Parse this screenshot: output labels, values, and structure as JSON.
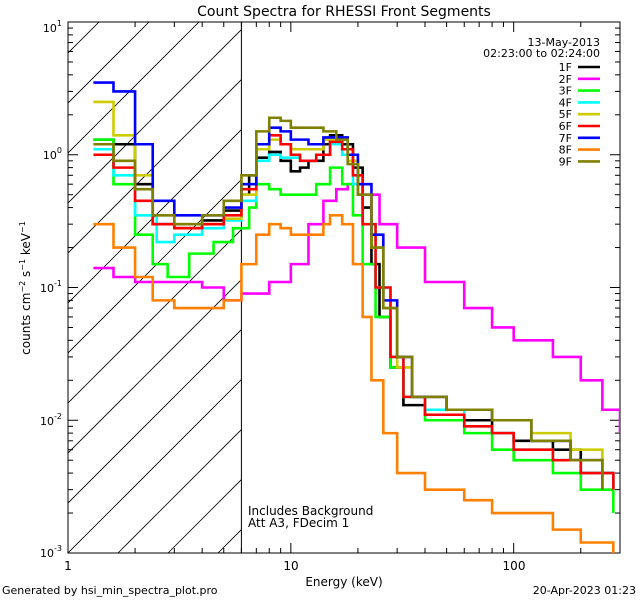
{
  "chart_data": {
    "type": "line",
    "title": "Count Spectra for RHESSI Front Segments",
    "date": "13-May-2013",
    "time_range": "02:23:00 to 02:24:00",
    "xlabel": "Energy (keV)",
    "ylabel_base": "counts cm",
    "xscale": "log",
    "yscale": "log",
    "xlim": [
      1,
      300
    ],
    "ylim": [
      0.001,
      10
    ],
    "x_tick_labels": [
      "1",
      "10",
      "100"
    ],
    "y_tick_labels": [
      "10",
      "10",
      "10",
      "10",
      "10"
    ],
    "y_tick_exponents": [
      "1",
      "0",
      "-1",
      "-2",
      "-3"
    ],
    "attenuator_energy_kev": 6,
    "note1": "Includes Background",
    "note2": "Att A3, FDecim 1",
    "footer_left": "Generated by hsi_min_spectra_plot.pro",
    "footer_right": "20-Apr-2023 01:23",
    "series": [
      {
        "name": "1F",
        "color": "#000000",
        "points": [
          [
            1.3,
            1.3
          ],
          [
            1.6,
            1.2
          ],
          [
            2.0,
            0.6
          ],
          [
            2.4,
            0.3
          ],
          [
            3.0,
            0.28
          ],
          [
            4.0,
            0.32
          ],
          [
            5.0,
            0.38
          ],
          [
            6.0,
            0.5
          ],
          [
            6.5,
            0.7
          ],
          [
            7.0,
            0.95
          ],
          [
            8.0,
            1.05
          ],
          [
            9.0,
            0.9
          ],
          [
            10.0,
            0.75
          ],
          [
            11.0,
            0.8
          ],
          [
            12.0,
            0.9
          ],
          [
            14.0,
            1.2
          ],
          [
            15.0,
            1.4
          ],
          [
            17.0,
            1.2
          ],
          [
            19.0,
            0.8
          ],
          [
            21.0,
            0.4
          ],
          [
            23.0,
            0.15
          ],
          [
            25.0,
            0.06
          ],
          [
            28.0,
            0.025
          ],
          [
            32.0,
            0.013
          ],
          [
            40.0,
            0.011
          ],
          [
            60.0,
            0.01
          ],
          [
            80.0,
            0.008
          ],
          [
            100.0,
            0.007
          ],
          [
            150.0,
            0.006
          ],
          [
            200.0,
            0.004
          ],
          [
            280.0,
            0.003
          ]
        ]
      },
      {
        "name": "2F",
        "color": "#ff00ff",
        "points": [
          [
            1.3,
            0.14
          ],
          [
            1.6,
            0.12
          ],
          [
            2.0,
            0.11
          ],
          [
            3.0,
            0.11
          ],
          [
            4.0,
            0.1
          ],
          [
            5.0,
            0.08
          ],
          [
            6.0,
            0.09
          ],
          [
            8.0,
            0.11
          ],
          [
            10.0,
            0.15
          ],
          [
            12.0,
            0.3
          ],
          [
            14.0,
            0.45
          ],
          [
            16.0,
            0.55
          ],
          [
            18.0,
            0.6
          ],
          [
            20.0,
            0.5
          ],
          [
            25.0,
            0.3
          ],
          [
            30.0,
            0.2
          ],
          [
            40.0,
            0.11
          ],
          [
            60.0,
            0.07
          ],
          [
            80.0,
            0.05
          ],
          [
            100.0,
            0.04
          ],
          [
            150.0,
            0.03
          ],
          [
            200.0,
            0.02
          ],
          [
            250.0,
            0.012
          ],
          [
            300.0,
            0.008
          ]
        ]
      },
      {
        "name": "3F",
        "color": "#00ff00",
        "points": [
          [
            1.3,
            1.3
          ],
          [
            1.6,
            0.6
          ],
          [
            2.0,
            0.25
          ],
          [
            2.4,
            0.15
          ],
          [
            2.8,
            0.12
          ],
          [
            3.5,
            0.18
          ],
          [
            4.5,
            0.22
          ],
          [
            5.5,
            0.28
          ],
          [
            6.5,
            0.4
          ],
          [
            7.0,
            0.6
          ],
          [
            8.0,
            0.55
          ],
          [
            9.0,
            0.5
          ],
          [
            11.0,
            0.5
          ],
          [
            13.0,
            0.6
          ],
          [
            15.0,
            0.8
          ],
          [
            17.0,
            0.6
          ],
          [
            19.0,
            0.35
          ],
          [
            21.0,
            0.15
          ],
          [
            24.0,
            0.06
          ],
          [
            28.0,
            0.025
          ],
          [
            32.0,
            0.015
          ],
          [
            40.0,
            0.01
          ],
          [
            60.0,
            0.008
          ],
          [
            80.0,
            0.006
          ],
          [
            100.0,
            0.005
          ],
          [
            150.0,
            0.004
          ],
          [
            200.0,
            0.003
          ],
          [
            280.0,
            0.002
          ]
        ]
      },
      {
        "name": "4F",
        "color": "#00ffff",
        "points": [
          [
            1.3,
            1.1
          ],
          [
            1.6,
            0.7
          ],
          [
            2.0,
            0.35
          ],
          [
            2.5,
            0.22
          ],
          [
            3.0,
            0.25
          ],
          [
            4.0,
            0.28
          ],
          [
            5.0,
            0.32
          ],
          [
            6.0,
            0.45
          ],
          [
            7.0,
            0.9
          ],
          [
            8.0,
            1.0
          ],
          [
            9.0,
            0.95
          ],
          [
            11.0,
            0.9
          ],
          [
            13.0,
            1.0
          ],
          [
            15.0,
            1.2
          ],
          [
            17.0,
            1.0
          ],
          [
            19.0,
            0.6
          ],
          [
            21.0,
            0.3
          ],
          [
            24.0,
            0.1
          ],
          [
            28.0,
            0.03
          ],
          [
            32.0,
            0.015
          ],
          [
            40.0,
            0.012
          ],
          [
            60.0,
            0.009
          ],
          [
            80.0,
            0.008
          ],
          [
            100.0,
            0.006
          ],
          [
            150.0,
            0.005
          ],
          [
            200.0,
            0.004
          ],
          [
            280.0,
            0.003
          ]
        ]
      },
      {
        "name": "5F",
        "color": "#cccc00",
        "points": [
          [
            1.3,
            2.5
          ],
          [
            1.6,
            1.4
          ],
          [
            2.0,
            0.7
          ],
          [
            2.4,
            0.35
          ],
          [
            3.0,
            0.3
          ],
          [
            4.0,
            0.3
          ],
          [
            5.0,
            0.33
          ],
          [
            6.0,
            0.5
          ],
          [
            7.0,
            1.1
          ],
          [
            8.0,
            1.3
          ],
          [
            9.0,
            1.2
          ],
          [
            10.0,
            1.1
          ],
          [
            12.0,
            1.1
          ],
          [
            14.0,
            1.3
          ],
          [
            16.0,
            1.3
          ],
          [
            18.0,
            0.9
          ],
          [
            20.0,
            0.5
          ],
          [
            23.0,
            0.2
          ],
          [
            26.0,
            0.07
          ],
          [
            30.0,
            0.025
          ],
          [
            35.0,
            0.015
          ],
          [
            50.0,
            0.012
          ],
          [
            80.0,
            0.01
          ],
          [
            120.0,
            0.008
          ],
          [
            180.0,
            0.006
          ],
          [
            250.0,
            0.004
          ]
        ]
      },
      {
        "name": "6F",
        "color": "#ff0000",
        "points": [
          [
            1.3,
            1.0
          ],
          [
            1.6,
            0.8
          ],
          [
            2.0,
            0.45
          ],
          [
            2.4,
            0.3
          ],
          [
            3.0,
            0.28
          ],
          [
            4.0,
            0.3
          ],
          [
            5.0,
            0.35
          ],
          [
            6.0,
            0.55
          ],
          [
            7.0,
            1.2
          ],
          [
            8.0,
            1.4
          ],
          [
            9.0,
            1.2
          ],
          [
            10.0,
            1.0
          ],
          [
            11.0,
            0.9
          ],
          [
            13.0,
            1.0
          ],
          [
            15.0,
            1.25
          ],
          [
            17.0,
            1.1
          ],
          [
            19.0,
            0.7
          ],
          [
            21.0,
            0.3
          ],
          [
            24.0,
            0.1
          ],
          [
            28.0,
            0.03
          ],
          [
            32.0,
            0.015
          ],
          [
            40.0,
            0.011
          ],
          [
            60.0,
            0.009
          ],
          [
            80.0,
            0.008
          ],
          [
            100.0,
            0.006
          ],
          [
            150.0,
            0.005
          ],
          [
            200.0,
            0.004
          ],
          [
            280.0,
            0.003
          ]
        ]
      },
      {
        "name": "7F",
        "color": "#0000ff",
        "points": [
          [
            1.3,
            3.5
          ],
          [
            1.6,
            3.0
          ],
          [
            2.0,
            1.2
          ],
          [
            2.4,
            0.45
          ],
          [
            3.0,
            0.35
          ],
          [
            4.0,
            0.35
          ],
          [
            5.0,
            0.4
          ],
          [
            6.0,
            0.6
          ],
          [
            7.0,
            1.2
          ],
          [
            8.0,
            1.6
          ],
          [
            9.0,
            1.5
          ],
          [
            10.0,
            1.3
          ],
          [
            12.0,
            1.2
          ],
          [
            14.0,
            1.35
          ],
          [
            16.0,
            1.35
          ],
          [
            18.0,
            1.0
          ],
          [
            20.0,
            0.6
          ],
          [
            23.0,
            0.25
          ],
          [
            26.0,
            0.08
          ],
          [
            30.0,
            0.03
          ],
          [
            35.0,
            0.015
          ],
          [
            50.0,
            0.012
          ],
          [
            80.0,
            0.01
          ],
          [
            120.0,
            0.007
          ],
          [
            180.0,
            0.005
          ],
          [
            250.0,
            0.003
          ]
        ]
      },
      {
        "name": "8F",
        "color": "#ff8000",
        "points": [
          [
            1.3,
            0.3
          ],
          [
            1.6,
            0.2
          ],
          [
            2.0,
            0.12
          ],
          [
            2.4,
            0.08
          ],
          [
            3.0,
            0.07
          ],
          [
            4.0,
            0.07
          ],
          [
            5.0,
            0.08
          ],
          [
            6.0,
            0.15
          ],
          [
            7.0,
            0.25
          ],
          [
            8.0,
            0.3
          ],
          [
            9.0,
            0.28
          ],
          [
            10.0,
            0.25
          ],
          [
            12.0,
            0.25
          ],
          [
            14.0,
            0.3
          ],
          [
            15.0,
            0.35
          ],
          [
            17.0,
            0.3
          ],
          [
            19.0,
            0.15
          ],
          [
            21.0,
            0.06
          ],
          [
            23.0,
            0.02
          ],
          [
            26.0,
            0.008
          ],
          [
            30.0,
            0.004
          ],
          [
            40.0,
            0.003
          ],
          [
            60.0,
            0.0025
          ],
          [
            80.0,
            0.002
          ],
          [
            100.0,
            0.002
          ],
          [
            150.0,
            0.0015
          ],
          [
            200.0,
            0.0012
          ],
          [
            280.0,
            0.001
          ]
        ]
      },
      {
        "name": "9F",
        "color": "#808000",
        "points": [
          [
            1.3,
            1.2
          ],
          [
            1.6,
            0.9
          ],
          [
            2.0,
            0.55
          ],
          [
            2.4,
            0.35
          ],
          [
            3.0,
            0.3
          ],
          [
            4.0,
            0.35
          ],
          [
            5.0,
            0.45
          ],
          [
            6.0,
            0.7
          ],
          [
            7.0,
            1.5
          ],
          [
            8.0,
            1.9
          ],
          [
            9.0,
            1.8
          ],
          [
            10.0,
            1.6
          ],
          [
            12.0,
            1.6
          ],
          [
            14.0,
            1.5
          ],
          [
            16.0,
            1.3
          ],
          [
            18.0,
            0.85
          ],
          [
            20.0,
            0.5
          ],
          [
            23.0,
            0.2
          ],
          [
            26.0,
            0.07
          ],
          [
            30.0,
            0.03
          ],
          [
            35.0,
            0.015
          ],
          [
            50.0,
            0.012
          ],
          [
            80.0,
            0.01
          ],
          [
            120.0,
            0.007
          ],
          [
            180.0,
            0.005
          ],
          [
            250.0,
            0.003
          ]
        ]
      }
    ]
  }
}
